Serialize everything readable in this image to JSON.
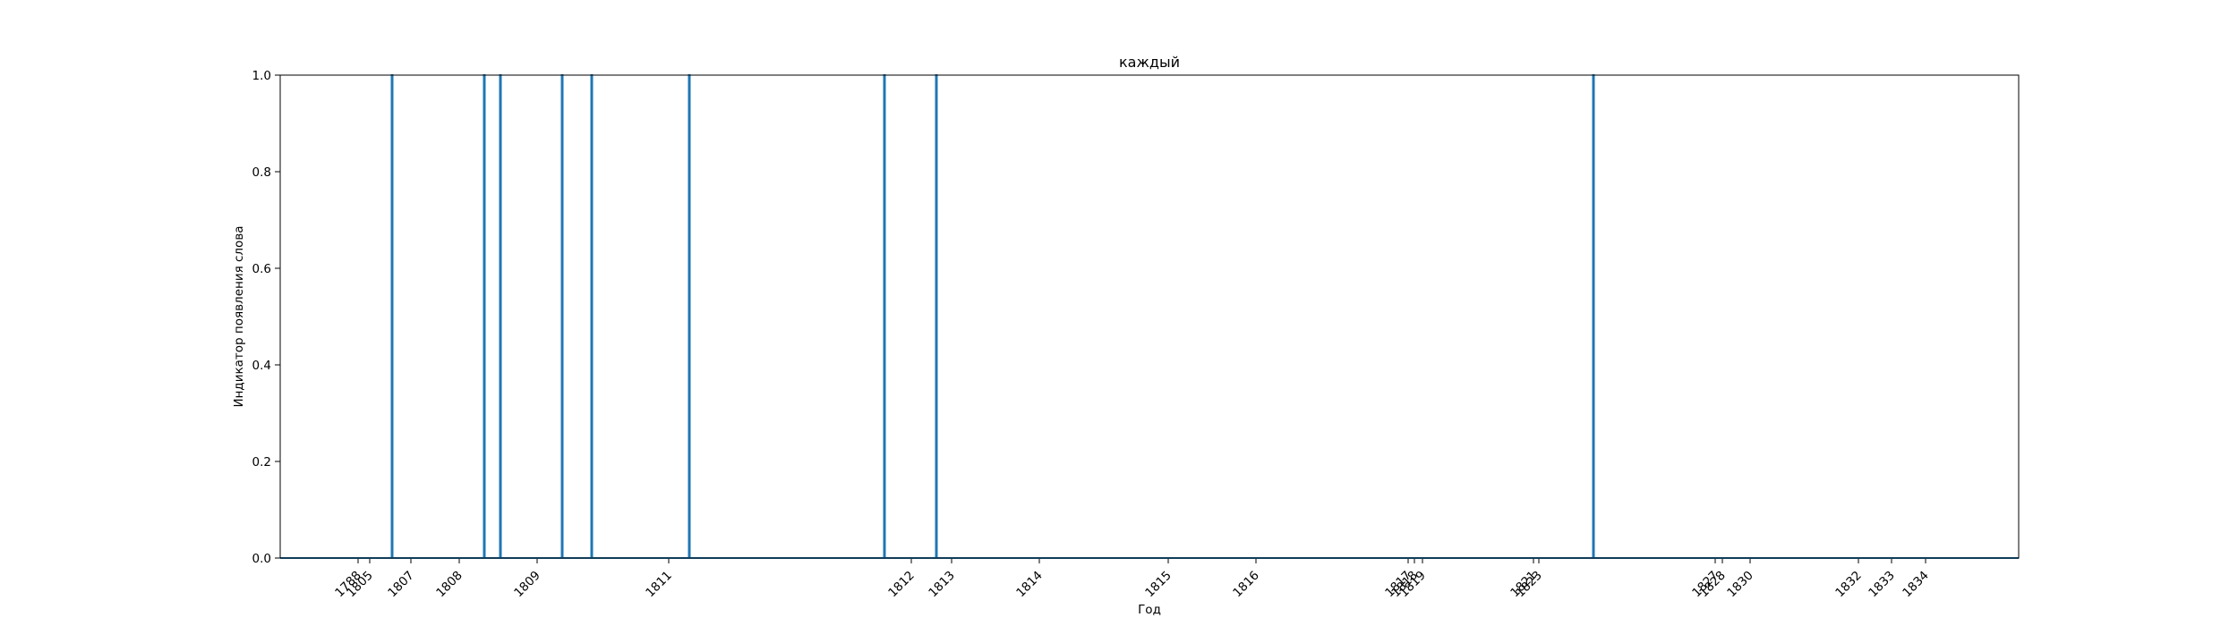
{
  "chart_data": {
    "type": "line",
    "title": "каждый",
    "xlabel": "Год",
    "ylabel": "Индикатор появления слова",
    "ylim": [
      0,
      1
    ],
    "yticks": [
      "0.0",
      "0.2",
      "0.4",
      "0.6",
      "0.8",
      "1.0"
    ],
    "x_tick_labels": [
      "1788",
      "1805",
      "1807",
      "1808",
      "1809",
      "1811",
      "1812",
      "1813",
      "1814",
      "1815",
      "1816",
      "1817",
      "1818",
      "1819",
      "1821",
      "1823",
      "1827",
      "1828",
      "1830",
      "1832",
      "1833",
      "1834"
    ],
    "grid": false,
    "legend": "none",
    "series": [
      {
        "color": "#1f77b4",
        "description": "occurrence indicator over time; spikes to 1.0 at occurrences",
        "spike_positions_years_approx": [
          1806.3,
          1808.5,
          1808.75,
          1809.6,
          1810.2,
          1811.4,
          1812.2,
          1812.75,
          1824.3
        ],
        "baseline": 0.0,
        "peak": 1.0
      }
    ]
  }
}
